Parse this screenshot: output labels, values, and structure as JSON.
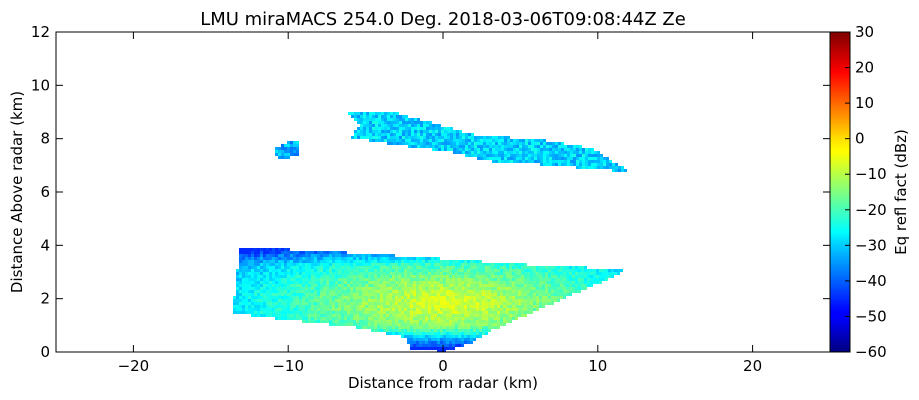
{
  "chart_data": {
    "type": "heatmap",
    "title": "LMU miraMACS 254.0 Deg. 2018-03-06T09:08:44Z  Ze",
    "xlabel": "Distance from radar (km)",
    "ylabel": "Distance Above radar  (km)",
    "xlim": [
      -25,
      25
    ],
    "ylim": [
      0,
      12
    ],
    "x_ticks": [
      -20,
      -10,
      0,
      10,
      20
    ],
    "y_ticks": [
      0,
      2,
      4,
      6,
      8,
      10,
      12
    ],
    "colorbar": {
      "label": "Eq refl fact (dBz)",
      "range": [
        -60,
        30
      ],
      "ticks": [
        30,
        20,
        10,
        0,
        -10,
        -20,
        -30,
        -40,
        -50,
        -60
      ],
      "colormap": "jet"
    },
    "regions": [
      {
        "name": "lower-echo-layer",
        "polygon_km": [
          [
            -13.7,
            1.5
          ],
          [
            -13.2,
            4.0
          ],
          [
            -5,
            3.75
          ],
          [
            5,
            3.35
          ],
          [
            10,
            3.2
          ],
          [
            11.8,
            3.1
          ],
          [
            3,
            0.85
          ],
          [
            1.6,
            0.35
          ],
          [
            0,
            0.05
          ],
          [
            -2.2,
            0.15
          ],
          [
            -2.5,
            0.6
          ],
          [
            -6,
            1.0
          ],
          [
            -10,
            1.25
          ]
        ],
        "typical_dBz": -15,
        "range_dBz": [
          -45,
          -5
        ]
      },
      {
        "name": "upper-echo-layer",
        "polygon_km": [
          [
            -6.5,
            9.1
          ],
          [
            -3,
            9.0
          ],
          [
            2,
            8.2
          ],
          [
            6.5,
            8.0
          ],
          [
            9.5,
            7.7
          ],
          [
            12,
            6.8
          ],
          [
            10,
            6.9
          ],
          [
            6,
            7.1
          ],
          [
            3,
            7.2
          ],
          [
            0,
            7.6
          ],
          [
            -3,
            7.8
          ],
          [
            -6,
            8.1
          ],
          [
            -5.5,
            8.6
          ]
        ],
        "typical_dBz": -30,
        "range_dBz": [
          -40,
          -22
        ]
      },
      {
        "name": "upper-left-fragment",
        "polygon_km": [
          [
            -10.9,
            7.7
          ],
          [
            -10.0,
            8.0
          ],
          [
            -9.3,
            7.9
          ],
          [
            -9.5,
            7.4
          ],
          [
            -10.5,
            7.3
          ],
          [
            -11.0,
            7.4
          ]
        ],
        "typical_dBz": -33,
        "range_dBz": [
          -40,
          -25
        ]
      }
    ]
  }
}
